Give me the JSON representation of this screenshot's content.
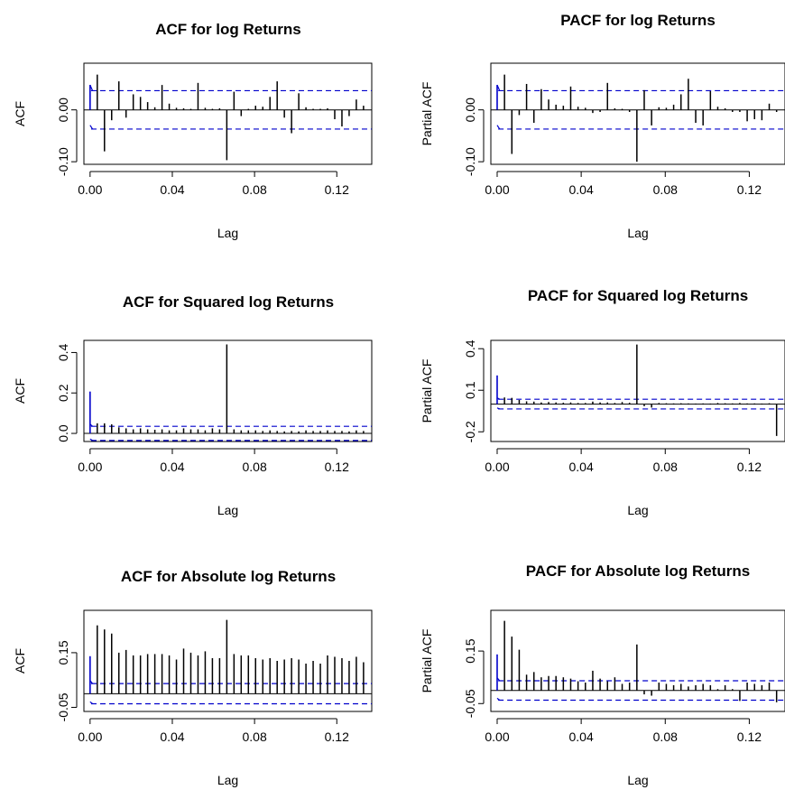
{
  "chart_data": [
    {
      "type": "bar",
      "title": "ACF for log Returns",
      "xlabel": "Lag",
      "ylabel": "ACF",
      "xlim": [
        -0.003,
        0.137
      ],
      "ylim": [
        -0.105,
        0.09
      ],
      "xticks": [
        0.0,
        0.04,
        0.08,
        0.12
      ],
      "xtick_labels": [
        "0.00",
        "0.04",
        "0.08",
        "0.12"
      ],
      "yticks": [
        -0.1,
        0.0
      ],
      "ytick_labels": [
        "-0.10",
        "0.00"
      ],
      "ci": 0.037,
      "lags": [
        0.0035,
        0.007,
        0.0105,
        0.014,
        0.0175,
        0.021,
        0.0245,
        0.028,
        0.0315,
        0.035,
        0.0385,
        0.042,
        0.0455,
        0.049,
        0.0525,
        0.056,
        0.0595,
        0.063,
        0.0665,
        0.07,
        0.0735,
        0.077,
        0.0805,
        0.084,
        0.0875,
        0.091,
        0.0945,
        0.098,
        0.1015,
        0.105,
        0.1085,
        0.112,
        0.1155,
        0.119,
        0.1225,
        0.126,
        0.1295,
        0.133
      ],
      "values": [
        0.068,
        -0.08,
        -0.02,
        0.055,
        -0.015,
        0.03,
        0.025,
        0.015,
        0.005,
        0.048,
        0.012,
        0.004,
        0.003,
        0.002,
        0.052,
        0.004,
        0.002,
        0.003,
        -0.097,
        0.035,
        -0.012,
        0.002,
        0.008,
        0.006,
        0.025,
        0.055,
        -0.015,
        -0.045,
        0.032,
        0.005,
        0.002,
        0.002,
        0.003,
        -0.018,
        -0.032,
        -0.012,
        0.02,
        0.008
      ],
      "ci_style": "dashed",
      "ci_color": "#0000cc",
      "grid": false
    },
    {
      "type": "bar",
      "title": "PACF for log Returns",
      "xlabel": "Lag",
      "ylabel": "Partial ACF",
      "xlim": [
        -0.003,
        0.137
      ],
      "ylim": [
        -0.105,
        0.09
      ],
      "xticks": [
        0.0,
        0.04,
        0.08,
        0.12
      ],
      "xtick_labels": [
        "0.00",
        "0.04",
        "0.08",
        "0.12"
      ],
      "yticks": [
        -0.1,
        0.0
      ],
      "ytick_labels": [
        "-0.10",
        "0.00"
      ],
      "ci": 0.037,
      "lags": [
        0.0035,
        0.007,
        0.0105,
        0.014,
        0.0175,
        0.021,
        0.0245,
        0.028,
        0.0315,
        0.035,
        0.0385,
        0.042,
        0.0455,
        0.049,
        0.0525,
        0.056,
        0.0595,
        0.063,
        0.0665,
        0.07,
        0.0735,
        0.077,
        0.0805,
        0.084,
        0.0875,
        0.091,
        0.0945,
        0.098,
        0.1015,
        0.105,
        0.1085,
        0.112,
        0.1155,
        0.119,
        0.1225,
        0.126,
        0.1295,
        0.133
      ],
      "values": [
        0.068,
        -0.085,
        -0.01,
        0.05,
        -0.025,
        0.04,
        0.02,
        0.01,
        0.008,
        0.045,
        0.006,
        0.004,
        -0.006,
        -0.004,
        0.052,
        0.003,
        0.002,
        -0.004,
        -0.1,
        0.038,
        -0.03,
        0.005,
        0.004,
        0.01,
        0.03,
        0.06,
        -0.025,
        -0.03,
        0.036,
        0.006,
        0.003,
        -0.004,
        -0.004,
        -0.022,
        -0.018,
        -0.02,
        0.012,
        -0.004
      ],
      "ci_style": "dashed",
      "ci_color": "#0000cc",
      "grid": false
    },
    {
      "type": "bar",
      "title": "ACF for Squared log Returns",
      "xlabel": "Lag",
      "ylabel": "ACF",
      "xlim": [
        -0.003,
        0.137
      ],
      "ylim": [
        -0.04,
        0.46
      ],
      "xticks": [
        0.0,
        0.04,
        0.08,
        0.12
      ],
      "xtick_labels": [
        "0.00",
        "0.04",
        "0.08",
        "0.12"
      ],
      "yticks": [
        0.0,
        0.2,
        0.4
      ],
      "ytick_labels": [
        "0.0",
        "0.2",
        "0.4"
      ],
      "ci": 0.035,
      "lags": [
        0.0035,
        0.007,
        0.0105,
        0.014,
        0.0175,
        0.021,
        0.0245,
        0.028,
        0.0315,
        0.035,
        0.0385,
        0.042,
        0.0455,
        0.049,
        0.0525,
        0.056,
        0.0595,
        0.063,
        0.0665,
        0.07,
        0.0735,
        0.077,
        0.0805,
        0.084,
        0.0875,
        0.091,
        0.0945,
        0.098,
        0.1015,
        0.105,
        0.1085,
        0.112,
        0.1155,
        0.119,
        0.1225,
        0.126,
        0.1295,
        0.133
      ],
      "values": [
        0.05,
        0.05,
        0.045,
        0.03,
        0.025,
        0.02,
        0.025,
        0.02,
        0.018,
        0.02,
        0.015,
        0.015,
        0.025,
        0.02,
        0.02,
        0.015,
        0.025,
        0.02,
        0.44,
        0.02,
        0.015,
        0.015,
        0.015,
        0.012,
        0.015,
        0.012,
        0.01,
        0.012,
        0.01,
        0.015,
        0.012,
        0.012,
        0.015,
        0.012,
        0.012,
        0.01,
        0.015,
        0.012
      ],
      "ci_style": "dashed",
      "ci_color": "#0000cc",
      "grid": false
    },
    {
      "type": "bar",
      "title": "PACF for Squared log Returns",
      "xlabel": "Lag",
      "ylabel": "Partial ACF",
      "xlim": [
        -0.003,
        0.137
      ],
      "ylim": [
        -0.27,
        0.46
      ],
      "xticks": [
        0.0,
        0.04,
        0.08,
        0.12
      ],
      "xtick_labels": [
        "0.00",
        "0.04",
        "0.08",
        "0.12"
      ],
      "yticks": [
        -0.2,
        0.1,
        0.4
      ],
      "ytick_labels": [
        "-0.2",
        "0.1",
        "0.4"
      ],
      "ci": 0.035,
      "lags": [
        0.0035,
        0.007,
        0.0105,
        0.014,
        0.0175,
        0.021,
        0.0245,
        0.028,
        0.0315,
        0.035,
        0.0385,
        0.042,
        0.0455,
        0.049,
        0.0525,
        0.056,
        0.0595,
        0.063,
        0.0665,
        0.07,
        0.0735,
        0.077,
        0.0805,
        0.084,
        0.0875,
        0.091,
        0.0945,
        0.098,
        0.1015,
        0.105,
        0.1085,
        0.112,
        0.1155,
        0.119,
        0.1225,
        0.126,
        0.1295,
        0.133
      ],
      "values": [
        0.048,
        0.045,
        0.03,
        0.02,
        0.018,
        0.012,
        0.015,
        0.012,
        0.01,
        0.012,
        0.008,
        0.008,
        0.018,
        0.012,
        0.012,
        0.008,
        0.015,
        0.01,
        0.43,
        -0.015,
        -0.025,
        0.008,
        0.006,
        0.005,
        0.006,
        0.005,
        0.004,
        0.005,
        0.004,
        0.008,
        0.006,
        0.005,
        0.008,
        0.005,
        0.005,
        0.004,
        0.006,
        -0.23
      ],
      "ci_style": "dashed",
      "ci_color": "#0000cc",
      "grid": false
    },
    {
      "type": "bar",
      "title": "ACF for Absolute log Returns",
      "xlabel": "Lag",
      "ylabel": "ACF",
      "xlim": [
        -0.003,
        0.137
      ],
      "ylim": [
        -0.065,
        0.305
      ],
      "xticks": [
        0.0,
        0.04,
        0.08,
        0.12
      ],
      "xtick_labels": [
        "0.00",
        "0.04",
        "0.08",
        "0.12"
      ],
      "yticks": [
        -0.05,
        0.15
      ],
      "ytick_labels": [
        "-0.05",
        "0.15"
      ],
      "ci": 0.037,
      "lags": [
        0.0035,
        0.007,
        0.0105,
        0.014,
        0.0175,
        0.021,
        0.0245,
        0.028,
        0.0315,
        0.035,
        0.0385,
        0.042,
        0.0455,
        0.049,
        0.0525,
        0.056,
        0.0595,
        0.063,
        0.0665,
        0.07,
        0.0735,
        0.077,
        0.0805,
        0.084,
        0.0875,
        0.091,
        0.0945,
        0.098,
        0.1015,
        0.105,
        0.1085,
        0.112,
        0.1155,
        0.119,
        0.1225,
        0.126,
        0.1295,
        0.133
      ],
      "values": [
        0.25,
        0.235,
        0.22,
        0.15,
        0.16,
        0.14,
        0.14,
        0.145,
        0.145,
        0.145,
        0.14,
        0.125,
        0.165,
        0.15,
        0.14,
        0.155,
        0.13,
        0.13,
        0.27,
        0.145,
        0.14,
        0.14,
        0.13,
        0.125,
        0.13,
        0.12,
        0.125,
        0.13,
        0.125,
        0.11,
        0.12,
        0.11,
        0.14,
        0.135,
        0.13,
        0.12,
        0.135,
        0.115
      ],
      "ci_style": "dashed",
      "ci_color": "#0000cc",
      "grid": false
    },
    {
      "type": "bar",
      "title": "PACF for Absolute log Returns",
      "xlabel": "Lag",
      "ylabel": "Partial ACF",
      "xlim": [
        -0.003,
        0.137
      ],
      "ylim": [
        -0.08,
        0.305
      ],
      "xticks": [
        0.0,
        0.04,
        0.08,
        0.12
      ],
      "xtick_labels": [
        "0.00",
        "0.04",
        "0.08",
        "0.12"
      ],
      "yticks": [
        -0.05,
        0.15
      ],
      "ytick_labels": [
        "-0.05",
        "0.15"
      ],
      "ci": 0.037,
      "lags": [
        0.0035,
        0.007,
        0.0105,
        0.014,
        0.0175,
        0.021,
        0.0245,
        0.028,
        0.0315,
        0.035,
        0.0385,
        0.042,
        0.0455,
        0.049,
        0.0525,
        0.056,
        0.0595,
        0.063,
        0.0665,
        0.07,
        0.0735,
        0.077,
        0.0805,
        0.084,
        0.0875,
        0.091,
        0.0945,
        0.098,
        0.1015,
        0.105,
        0.1085,
        0.112,
        0.1155,
        0.119,
        0.1225,
        0.126,
        0.1295,
        0.133
      ],
      "values": [
        0.265,
        0.205,
        0.155,
        0.06,
        0.07,
        0.05,
        0.055,
        0.055,
        0.05,
        0.045,
        0.035,
        0.03,
        0.075,
        0.045,
        0.035,
        0.05,
        0.025,
        0.03,
        0.175,
        -0.015,
        -0.02,
        0.03,
        0.025,
        0.02,
        0.025,
        0.015,
        0.02,
        0.025,
        0.02,
        0.005,
        0.02,
        0.005,
        -0.04,
        0.03,
        0.025,
        0.02,
        0.03,
        -0.045
      ],
      "ci_style": "dashed",
      "ci_color": "#0000cc",
      "grid": false
    }
  ],
  "colors": {
    "bars": "#000000",
    "ci": "#0000cc",
    "lag0": "#0000cc",
    "axis": "#000000"
  }
}
